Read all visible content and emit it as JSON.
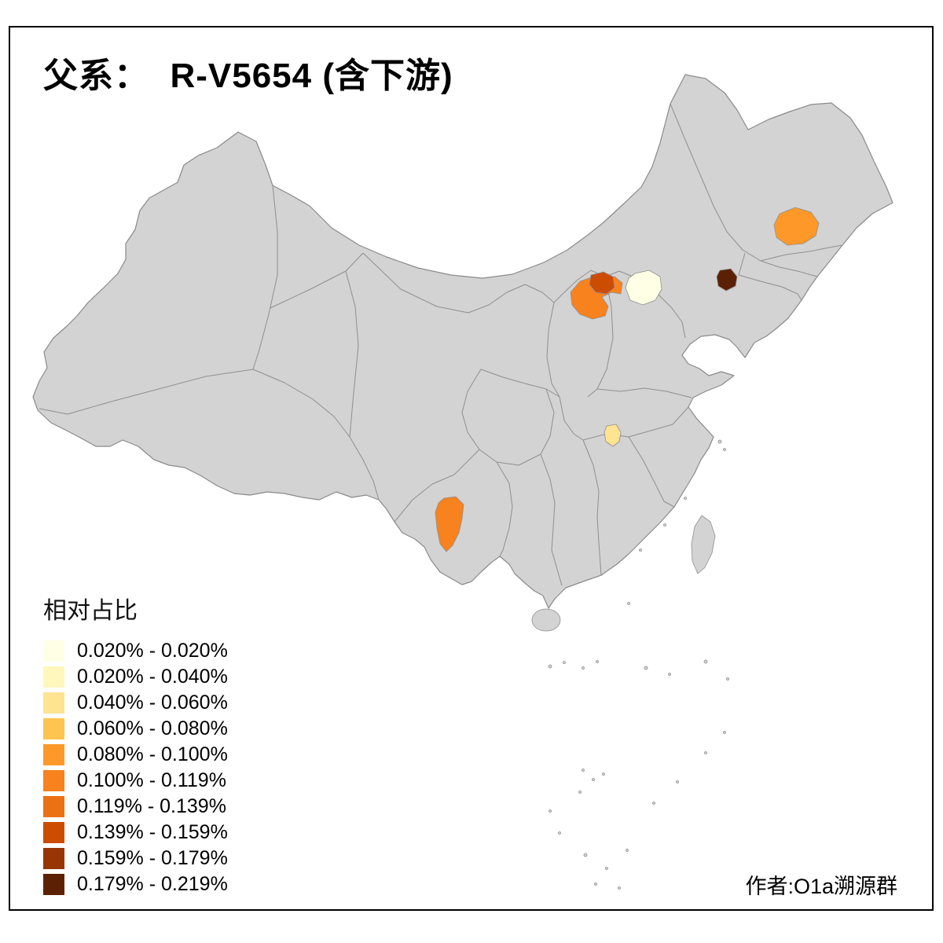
{
  "title": "父系：  R-V5654 (含下游)",
  "author_credit": "作者:O1a溯源群",
  "legend": {
    "title": "相对占比",
    "items": [
      {
        "label": "0.020% - 0.020%",
        "color": "#FFFFE5"
      },
      {
        "label": "0.020% - 0.040%",
        "color": "#FFF7BC"
      },
      {
        "label": "0.040% - 0.060%",
        "color": "#FEE391"
      },
      {
        "label": "0.060% - 0.080%",
        "color": "#FEC44F"
      },
      {
        "label": "0.080% - 0.100%",
        "color": "#FE9929"
      },
      {
        "label": "0.100% - 0.119%",
        "color": "#F8821E"
      },
      {
        "label": "0.119% - 0.139%",
        "color": "#EC7014"
      },
      {
        "label": "0.139% - 0.159%",
        "color": "#CC4C02"
      },
      {
        "label": "0.159% - 0.179%",
        "color": "#993404"
      },
      {
        "label": "0.179% - 0.219%",
        "color": "#5C2105"
      }
    ]
  },
  "chart_data": {
    "type": "choropleth_map",
    "subject": "Paternal haplogroup R-V5654 (incl. downstream) relative frequency by prefecture",
    "base_region": "China",
    "no_data_fill": "#D3D3D3",
    "legend_position": "bottom-left",
    "highlighted_regions": [
      {
        "name": "beijing-area",
        "bin": "0.020% - 0.020%",
        "color": "#FFFFE5"
      },
      {
        "name": "west-hubei",
        "bin": "0.040% - 0.060%",
        "color": "#FEE391"
      },
      {
        "name": "central-jilin",
        "bin": "0.080% - 0.100%",
        "color": "#FE9929"
      },
      {
        "name": "north-shanxi",
        "bin": "0.100% - 0.119%",
        "color": "#F8821E"
      },
      {
        "name": "central-yunnan",
        "bin": "0.100% - 0.119%",
        "color": "#F8821E"
      },
      {
        "name": "north-shanxi-dark-spot",
        "bin": "0.139% - 0.159%",
        "color": "#CC4C02"
      },
      {
        "name": "south-liaoning-coast-spot",
        "bin": "0.179% - 0.219%",
        "color": "#5C2105"
      }
    ]
  }
}
